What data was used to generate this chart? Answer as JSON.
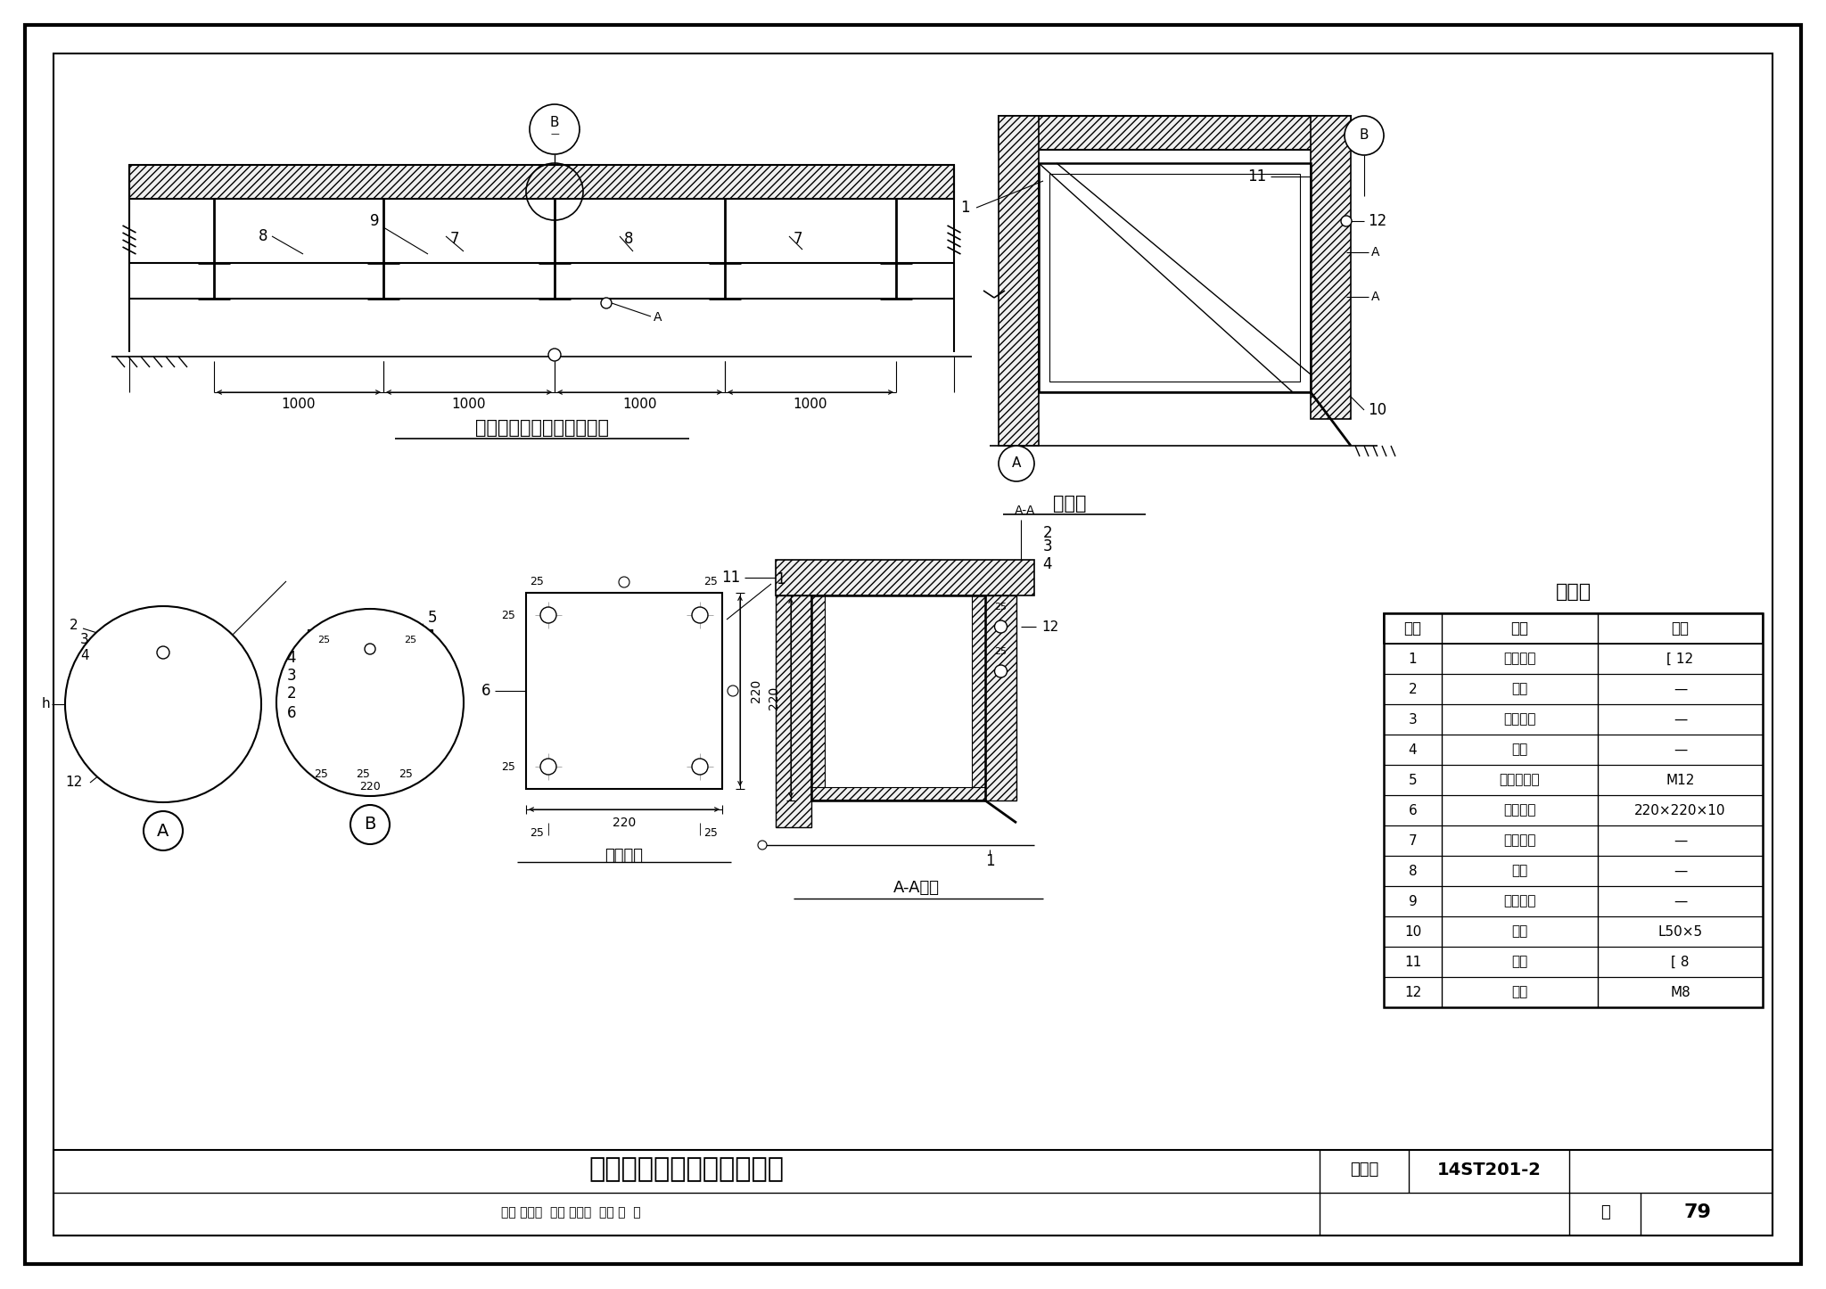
{
  "bg": "#ffffff",
  "title": "轨顶排热风管固定支架安装",
  "fig_no": "14ST201-2",
  "page": "79",
  "top_view_title": "轨顶排热风管固定支架安装",
  "side_view_title": "左视图",
  "plate_detail_title": "钢板详图",
  "section_title": "A-A剖面",
  "mat_title": "材料表",
  "mat_headers": [
    "编号",
    "名称",
    "规格"
  ],
  "mat_rows": [
    [
      "1",
      "镀锌槽钢",
      "[ 12"
    ],
    [
      "2",
      "螺母",
      "—"
    ],
    [
      "3",
      "弹簧垫片",
      "—"
    ],
    [
      "4",
      "平垫",
      "—"
    ],
    [
      "5",
      "后切底膨栓",
      "M12"
    ],
    [
      "6",
      "镀锌钢板",
      "220×220×10"
    ],
    [
      "7",
      "固定支架",
      "—"
    ],
    [
      "8",
      "吊架",
      "—"
    ],
    [
      "9",
      "轨顶风管",
      "—"
    ],
    [
      "10",
      "角钢",
      "L50×5"
    ],
    [
      "11",
      "槽钢",
      "[ 8"
    ],
    [
      "12",
      "螺栓",
      "M8"
    ]
  ],
  "footer_left": "审核 赵国栋  校对 赵东明  设计 秦  青",
  "page_label": "页"
}
